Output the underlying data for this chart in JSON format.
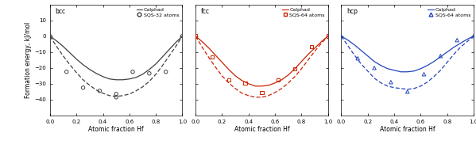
{
  "bcc": {
    "label": "bcc",
    "color": "#404040",
    "sqs_label": "SQS-32 atoms",
    "sqs_marker": "o",
    "sqs_x": [
      0.0,
      0.125,
      0.25,
      0.375,
      0.5,
      0.5,
      0.625,
      0.75,
      0.875,
      1.0
    ],
    "sqs_y": [
      0.0,
      -22.5,
      -32.5,
      -34.5,
      -38.5,
      -36.5,
      -22.5,
      -23.5,
      -22.5,
      0.0
    ],
    "calphad_x": [
      0.0,
      0.05,
      0.1,
      0.15,
      0.2,
      0.25,
      0.3,
      0.35,
      0.4,
      0.45,
      0.5,
      0.55,
      0.6,
      0.65,
      0.7,
      0.75,
      0.8,
      0.85,
      0.9,
      0.95,
      1.0
    ],
    "calphad_y": [
      0.0,
      -3.0,
      -6.5,
      -10.5,
      -14.5,
      -18.0,
      -21.0,
      -23.5,
      -25.5,
      -27.0,
      -27.5,
      -27.5,
      -27.0,
      -26.0,
      -24.0,
      -21.0,
      -17.5,
      -13.0,
      -8.5,
      -4.0,
      0.0
    ],
    "dashed_x": [
      0.0,
      0.05,
      0.1,
      0.15,
      0.2,
      0.25,
      0.3,
      0.35,
      0.4,
      0.45,
      0.5,
      0.55,
      0.6,
      0.65,
      0.7,
      0.75,
      0.8,
      0.85,
      0.9,
      0.95,
      1.0
    ],
    "dashed_y": [
      0.0,
      -6.5,
      -12.5,
      -18.0,
      -23.0,
      -27.5,
      -31.0,
      -34.0,
      -36.0,
      -37.5,
      -38.0,
      -37.5,
      -36.5,
      -34.5,
      -32.0,
      -28.5,
      -24.0,
      -18.5,
      -12.5,
      -6.5,
      0.0
    ]
  },
  "fcc": {
    "label": "fcc",
    "color": "#cc2200",
    "sqs_label": "SQS-64 atoms",
    "sqs_marker": "s",
    "sqs_x": [
      0.0,
      0.125,
      0.25,
      0.375,
      0.5,
      0.625,
      0.75,
      0.875,
      1.0
    ],
    "sqs_y": [
      0.0,
      -13.0,
      -27.5,
      -29.5,
      -35.5,
      -27.5,
      -20.5,
      -6.5,
      0.0
    ],
    "calphad_x": [
      0.0,
      0.05,
      0.1,
      0.15,
      0.2,
      0.25,
      0.3,
      0.35,
      0.4,
      0.45,
      0.5,
      0.55,
      0.6,
      0.65,
      0.7,
      0.75,
      0.8,
      0.85,
      0.9,
      0.95,
      1.0
    ],
    "calphad_y": [
      0.0,
      -3.5,
      -7.5,
      -12.0,
      -16.5,
      -21.0,
      -25.0,
      -28.0,
      -30.0,
      -31.5,
      -31.5,
      -31.0,
      -29.5,
      -27.5,
      -24.5,
      -20.5,
      -16.0,
      -11.5,
      -7.5,
      -3.5,
      0.0
    ],
    "dashed_x": [
      0.0,
      0.05,
      0.1,
      0.15,
      0.2,
      0.25,
      0.3,
      0.35,
      0.4,
      0.45,
      0.5,
      0.55,
      0.6,
      0.65,
      0.7,
      0.75,
      0.8,
      0.85,
      0.9,
      0.95,
      1.0
    ],
    "dashed_y": [
      0.0,
      -7.0,
      -13.5,
      -19.5,
      -25.0,
      -29.5,
      -33.0,
      -36.0,
      -37.5,
      -38.5,
      -38.5,
      -37.5,
      -35.5,
      -33.0,
      -29.5,
      -25.5,
      -20.5,
      -15.0,
      -9.5,
      -4.5,
      0.0
    ]
  },
  "hcp": {
    "label": "hcp",
    "color": "#2244bb",
    "sqs_label": "SQS-64 atoms",
    "sqs_marker": "^",
    "sqs_x": [
      0.0,
      0.125,
      0.25,
      0.375,
      0.5,
      0.625,
      0.75,
      0.875,
      1.0
    ],
    "sqs_y": [
      0.0,
      -14.0,
      -20.0,
      -29.0,
      -35.0,
      -24.0,
      -12.5,
      -2.5,
      0.0
    ],
    "calphad_x": [
      0.0,
      0.05,
      0.1,
      0.15,
      0.2,
      0.25,
      0.3,
      0.35,
      0.4,
      0.45,
      0.5,
      0.55,
      0.6,
      0.65,
      0.7,
      0.75,
      0.8,
      0.85,
      0.9,
      0.95,
      1.0
    ],
    "calphad_y": [
      0.0,
      -2.5,
      -5.5,
      -9.0,
      -12.5,
      -16.0,
      -18.5,
      -20.5,
      -21.5,
      -22.5,
      -22.5,
      -22.0,
      -20.5,
      -18.5,
      -16.0,
      -13.0,
      -10.0,
      -7.0,
      -4.5,
      -2.0,
      0.0
    ],
    "dashed_x": [
      0.0,
      0.05,
      0.1,
      0.15,
      0.2,
      0.25,
      0.3,
      0.35,
      0.4,
      0.45,
      0.5,
      0.55,
      0.6,
      0.65,
      0.7,
      0.75,
      0.8,
      0.85,
      0.9,
      0.95,
      1.0
    ],
    "dashed_y": [
      0.0,
      -6.0,
      -12.0,
      -17.5,
      -22.0,
      -26.5,
      -29.5,
      -31.5,
      -32.5,
      -33.0,
      -33.5,
      -33.0,
      -31.5,
      -29.0,
      -25.5,
      -21.5,
      -16.5,
      -11.5,
      -7.0,
      -3.5,
      0.0
    ]
  },
  "xlabel": "Atomic fraction Hf",
  "ylabel": "Formation energy, kJ/mol",
  "calphad_legend": "Calphad",
  "ylim": [
    -50,
    20
  ],
  "yticks": [
    -40,
    -30,
    -20,
    -10,
    0,
    10
  ],
  "xticks": [
    0.0,
    0.2,
    0.4,
    0.6,
    0.8,
    1.0
  ],
  "background": "#ffffff"
}
